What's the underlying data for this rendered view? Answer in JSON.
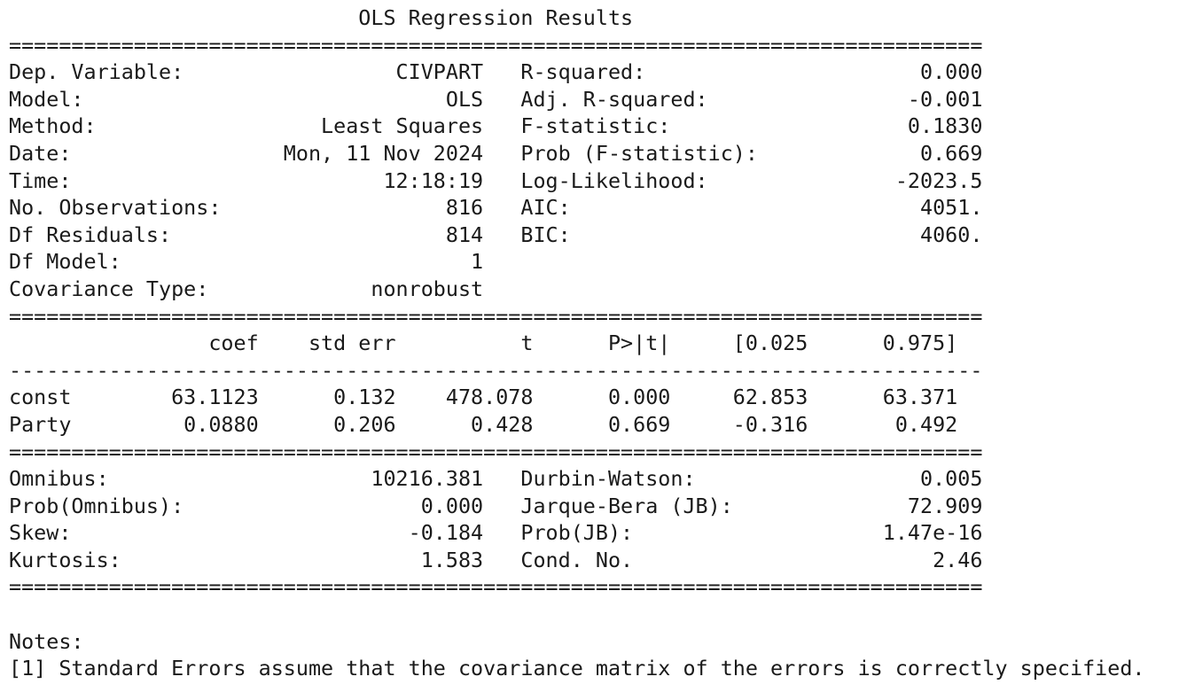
{
  "title": "OLS Regression Results",
  "double_rule": "==============================================================================",
  "single_rule": "------------------------------------------------------------------------------",
  "model_info": {
    "left": [
      {
        "label": "Dep. Variable:",
        "value": "CIVPART"
      },
      {
        "label": "Model:",
        "value": "OLS"
      },
      {
        "label": "Method:",
        "value": "Least Squares"
      },
      {
        "label": "Date:",
        "value": "Mon, 11 Nov 2024"
      },
      {
        "label": "Time:",
        "value": "12:18:19"
      },
      {
        "label": "No. Observations:",
        "value": "816"
      },
      {
        "label": "Df Residuals:",
        "value": "814"
      },
      {
        "label": "Df Model:",
        "value": "1"
      },
      {
        "label": "Covariance Type:",
        "value": "nonrobust"
      }
    ],
    "right": [
      {
        "label": "R-squared:",
        "value": "0.000"
      },
      {
        "label": "Adj. R-squared:",
        "value": "-0.001"
      },
      {
        "label": "F-statistic:",
        "value": "0.1830"
      },
      {
        "label": "Prob (F-statistic):",
        "value": "0.669"
      },
      {
        "label": "Log-Likelihood:",
        "value": "-2023.5"
      },
      {
        "label": "AIC:",
        "value": "4051."
      },
      {
        "label": "BIC:",
        "value": "4060."
      }
    ]
  },
  "coef_table": {
    "headers": [
      "",
      "coef",
      "std err",
      "t",
      "P>|t|",
      "[0.025",
      "0.975]"
    ],
    "rows": [
      [
        "const",
        "63.1123",
        "0.132",
        "478.078",
        "0.000",
        "62.853",
        "63.371"
      ],
      [
        "Party",
        "0.0880",
        "0.206",
        "0.428",
        "0.669",
        "-0.316",
        "0.492"
      ]
    ]
  },
  "diagnostics": [
    {
      "left_label": "Omnibus:",
      "left_value": "10216.381",
      "right_label": "Durbin-Watson:",
      "right_value": "0.005"
    },
    {
      "left_label": "Prob(Omnibus):",
      "left_value": "0.000",
      "right_label": "Jarque-Bera (JB):",
      "right_value": "72.909"
    },
    {
      "left_label": "Skew:",
      "left_value": "-0.184",
      "right_label": "Prob(JB):",
      "right_value": "1.47e-16"
    },
    {
      "left_label": "Kurtosis:",
      "left_value": "1.583",
      "right_label": "Cond. No.",
      "right_value": "2.46"
    }
  ],
  "notes": {
    "heading": "Notes:",
    "items": [
      "[1] Standard Errors assume that the covariance matrix of the errors is correctly specified."
    ]
  }
}
